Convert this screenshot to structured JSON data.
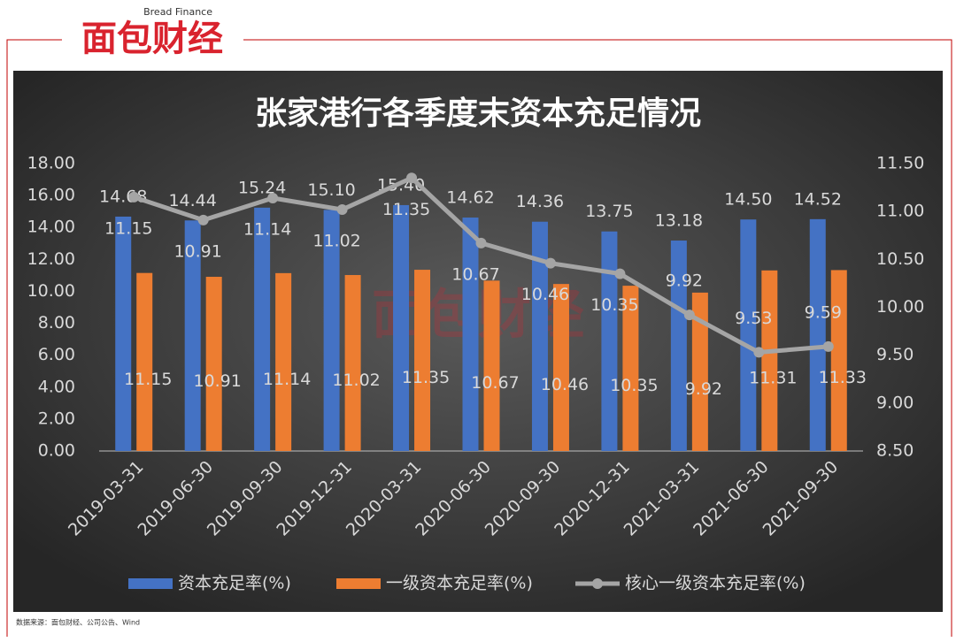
{
  "logo": {
    "name": "面包财经",
    "english": "Bread Finance"
  },
  "source": "数据来源：面包财经、公司公告、Wind",
  "chart_data": {
    "type": "bar",
    "title": "张家港行各季度末资本充足情况",
    "categories": [
      "2019-03-31",
      "2019-06-30",
      "2019-09-30",
      "2019-12-31",
      "2020-03-31",
      "2020-06-30",
      "2020-09-30",
      "2020-12-31",
      "2021-03-31",
      "2021-06-30",
      "2021-09-30"
    ],
    "series": [
      {
        "name": "资本充足率(%)",
        "color": "#4472c4",
        "values": [
          14.68,
          14.44,
          15.24,
          15.1,
          15.4,
          14.62,
          14.36,
          13.75,
          13.18,
          14.5,
          14.52
        ],
        "value_labels": [
          "14.68",
          "14.44",
          "15.24",
          "15.10",
          "15.40",
          "14.62",
          "14.36",
          "13.75",
          "13.18",
          "14.50",
          "14.52"
        ]
      },
      {
        "name": "一级资本充足率(%)",
        "color": "#ed7d31",
        "values": [
          11.15,
          10.91,
          11.14,
          11.02,
          11.35,
          10.67,
          10.46,
          10.35,
          9.92,
          11.31,
          11.33
        ],
        "value_labels": [
          "11.15",
          "10.91",
          "11.14",
          "11.02",
          "11.35",
          "10.67",
          "10.46",
          "10.35",
          "9.92",
          "11.31",
          "11.33"
        ]
      },
      {
        "name": "核心一级资本充足率(%)",
        "color": "#a5a5a5",
        "type": "line",
        "axis": "y2",
        "values": [
          11.15,
          10.91,
          11.14,
          11.02,
          11.35,
          10.67,
          10.46,
          10.35,
          9.92,
          9.53,
          9.59
        ],
        "value_labels": [
          "11.15",
          "10.91",
          "11.14",
          "11.02",
          "11.35",
          "10.67",
          "10.46",
          "10.35",
          "9.92",
          "9.53",
          "9.59"
        ]
      }
    ],
    "ylim": [
      0,
      18
    ],
    "yticks": [
      {
        "value": 0,
        "label": "0.00"
      },
      {
        "value": 2,
        "label": "2.00"
      },
      {
        "value": 4,
        "label": "4.00"
      },
      {
        "value": 6,
        "label": "6.00"
      },
      {
        "value": 8,
        "label": "8.00"
      },
      {
        "value": 10,
        "label": "10.00"
      },
      {
        "value": 12,
        "label": "12.00"
      },
      {
        "value": 14,
        "label": "14.00"
      },
      {
        "value": 16,
        "label": "16.00"
      },
      {
        "value": 18,
        "label": "18.00"
      }
    ],
    "y2lim": [
      8.5,
      11.5
    ],
    "y2ticks": [
      {
        "value": 8.5,
        "label": "8.50"
      },
      {
        "value": 9,
        "label": "9.00"
      },
      {
        "value": 9.5,
        "label": "9.50"
      },
      {
        "value": 10,
        "label": "10.00"
      },
      {
        "value": 10.5,
        "label": "10.50"
      },
      {
        "value": 11,
        "label": "11.00"
      },
      {
        "value": 11.5,
        "label": "11.50"
      }
    ],
    "legend": "bottom",
    "grid": false
  }
}
